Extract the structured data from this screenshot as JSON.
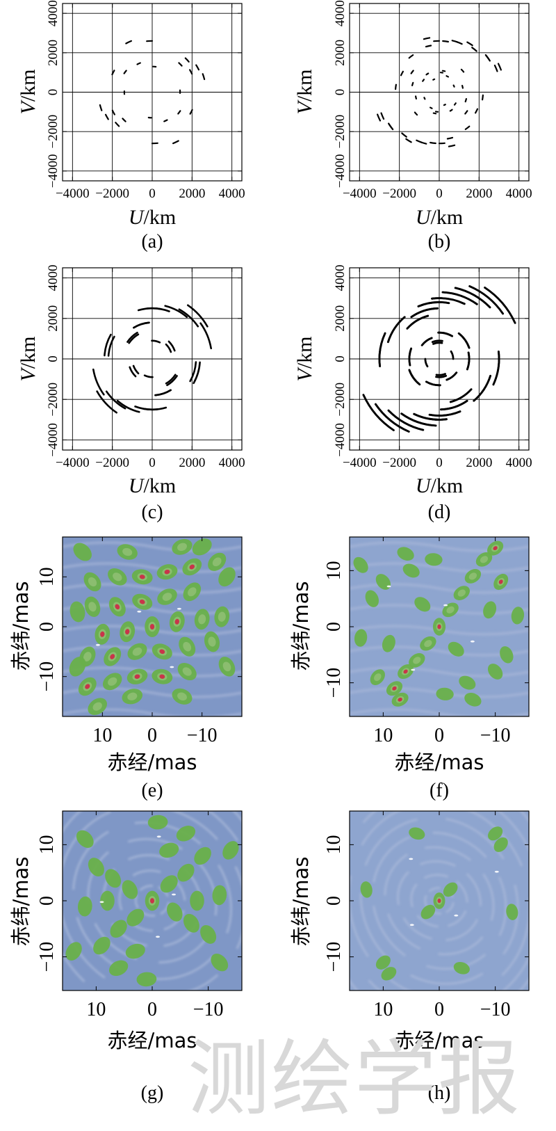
{
  "figure": {
    "uv_unit_label": "/km",
    "uv_xlabel": "U",
    "uv_ylabel": "V",
    "sky_xlabel": "赤经/mas",
    "sky_ylabel": "赤纬/mas",
    "watermark": "测绘学报",
    "colors": {
      "uv_track": "#000000",
      "grid": "#000000",
      "sky_bg": "#7f97c6",
      "sky_ring_light": "#aab8d8",
      "sky_peak_mid": "#69b04a",
      "sky_peak_core": "#c8354a",
      "sky_highlight": "#ffffff"
    }
  },
  "chart_data": [
    {
      "type": "scatter",
      "panel": "(a)",
      "title": "",
      "xlabel": "U/km",
      "ylabel": "V/km",
      "xlim": [
        -4500,
        4500
      ],
      "ylim": [
        -4500,
        4500
      ],
      "xticks": [
        -4000,
        -2000,
        0,
        2000,
        4000
      ],
      "yticks": [
        -4000,
        -2000,
        0,
        2000,
        4000
      ],
      "tick_labels_x": [
        "−4000",
        "−2000",
        "0",
        "2000",
        "4000"
      ],
      "tick_labels_y": [
        "−4000",
        "−2000",
        "0",
        "2000",
        "4000"
      ],
      "arc_span_deg": 6,
      "track_width": 2.2,
      "tracks": [
        [
          2700,
          14
        ],
        [
          2600,
          26
        ],
        [
          2400,
          40
        ],
        [
          2600,
          90
        ],
        [
          2800,
          112
        ],
        [
          2200,
          150
        ],
        [
          1400,
          178
        ],
        [
          2200,
          205
        ],
        [
          2000,
          222
        ],
        [
          1300,
          262
        ],
        [
          1600,
          292
        ],
        [
          1700,
          320
        ]
      ]
    },
    {
      "type": "scatter",
      "panel": "(b)",
      "title": "",
      "xlabel": "U/km",
      "ylabel": "V/km",
      "xlim": [
        -4500,
        4500
      ],
      "ylim": [
        -4500,
        4500
      ],
      "xticks": [
        -4000,
        -2000,
        0,
        2000,
        4000
      ],
      "yticks": [
        -4000,
        -2000,
        0,
        2000,
        4000
      ],
      "tick_labels_x": [
        "−4000",
        "−2000",
        "0",
        "2000",
        "4000"
      ],
      "tick_labels_y": [
        "−4000",
        "−2000",
        "0",
        "2000",
        "4000"
      ],
      "arc_span_deg": 6,
      "track_width": 2.2,
      "tracks": [
        [
          3300,
          20
        ],
        [
          3000,
          33
        ],
        [
          2900,
          55
        ],
        [
          2700,
          70
        ],
        [
          2600,
          90
        ],
        [
          2400,
          100
        ],
        [
          2300,
          125
        ],
        [
          2100,
          150
        ],
        [
          2200,
          170
        ],
        [
          3100,
          200
        ],
        [
          3000,
          212
        ],
        [
          2800,
          228
        ],
        [
          2700,
          245
        ],
        [
          2600,
          260
        ],
        [
          2800,
          280
        ],
        [
          1700,
          320
        ],
        [
          1400,
          340
        ],
        [
          1600,
          40
        ],
        [
          1100,
          75
        ],
        [
          1000,
          140
        ],
        [
          1200,
          190
        ],
        [
          900,
          240
        ],
        [
          1100,
          300
        ],
        [
          800,
          20
        ],
        [
          700,
          110
        ],
        [
          1000,
          260
        ]
      ]
    },
    {
      "type": "scatter",
      "panel": "(c)",
      "title": "",
      "xlabel": "U/km",
      "ylabel": "V/km",
      "xlim": [
        -4500,
        4500
      ],
      "ylim": [
        -4500,
        4500
      ],
      "xticks": [
        -4000,
        -2000,
        0,
        2000,
        4000
      ],
      "yticks": [
        -4000,
        -2000,
        0,
        2000,
        4000
      ],
      "tick_labels_x": [
        "−4000",
        "−2000",
        "0",
        "2000",
        "4000"
      ],
      "tick_labels_y": [
        "−4000",
        "−2000",
        "0",
        "2000",
        "4000"
      ],
      "arc_span_deg": 26,
      "track_width": 2.6,
      "tracks": [
        [
          3200,
          30
        ],
        [
          2700,
          50
        ],
        [
          2500,
          80
        ],
        [
          1800,
          95
        ],
        [
          1500,
          120
        ],
        [
          2400,
          150
        ],
        [
          3000,
          190
        ],
        [
          2800,
          215
        ],
        [
          2500,
          250
        ],
        [
          1800,
          275
        ],
        [
          1400,
          300
        ],
        [
          2200,
          330
        ],
        [
          1200,
          20
        ],
        [
          1000,
          200
        ],
        [
          900,
          245
        ]
      ]
    },
    {
      "type": "scatter",
      "panel": "(d)",
      "title": "",
      "xlabel": "U/km",
      "ylabel": "V/km",
      "xlim": [
        -4500,
        4500
      ],
      "ylim": [
        -4500,
        4500
      ],
      "xticks": [
        -4000,
        -2000,
        0,
        2000,
        4000
      ],
      "yticks": [
        -4000,
        -2000,
        0,
        2000,
        4000
      ],
      "tick_labels_x": [
        "−4000",
        "−2000",
        "0",
        "2000",
        "4000"
      ],
      "tick_labels_y": [
        "−4000",
        "−2000",
        "0",
        "2000",
        "4000"
      ],
      "arc_span_deg": 32,
      "track_width": 2.8,
      "tracks": [
        [
          4200,
          25
        ],
        [
          3900,
          35
        ],
        [
          3600,
          45
        ],
        [
          3300,
          55
        ],
        [
          3000,
          65
        ],
        [
          2800,
          80
        ],
        [
          2500,
          92
        ],
        [
          2200,
          105
        ],
        [
          2700,
          130
        ],
        [
          3000,
          155
        ],
        [
          4200,
          205
        ],
        [
          3900,
          215
        ],
        [
          3600,
          225
        ],
        [
          3300,
          235
        ],
        [
          3000,
          245
        ],
        [
          2800,
          260
        ],
        [
          2500,
          272
        ],
        [
          2200,
          285
        ],
        [
          2700,
          310
        ],
        [
          3000,
          335
        ],
        [
          1600,
          20
        ],
        [
          1300,
          60
        ],
        [
          1100,
          110
        ],
        [
          1500,
          160
        ],
        [
          1600,
          200
        ],
        [
          1300,
          240
        ],
        [
          1100,
          290
        ],
        [
          1500,
          340
        ],
        [
          800,
          80
        ],
        [
          700,
          180
        ],
        [
          900,
          260
        ]
      ]
    },
    {
      "type": "heatmap",
      "panel": "(e)",
      "title": "",
      "xlabel": "赤经/mas",
      "ylabel": "赤纬/mas",
      "xlim": [
        18,
        -18
      ],
      "ylim": [
        -18,
        18
      ],
      "xticks": [
        10,
        0,
        -10
      ],
      "yticks": [
        -10,
        0,
        10
      ],
      "tick_labels_x": [
        "10",
        "0",
        "−10"
      ],
      "tick_labels_y": [
        "−10",
        "0",
        "10"
      ],
      "blob_size": 2.0,
      "ring_period": 0,
      "ring_swirl": 0,
      "peaks": [
        [
          0,
          0,
          3
        ],
        [
          -5,
          1,
          3
        ],
        [
          5,
          -1,
          3
        ],
        [
          -10,
          1.5,
          2
        ],
        [
          10,
          -1.5,
          3
        ],
        [
          -14,
          2,
          2
        ],
        [
          -2,
          -5,
          3
        ],
        [
          3,
          -5,
          2
        ],
        [
          -7,
          -4,
          2
        ],
        [
          8,
          -6,
          3
        ],
        [
          -12,
          -3,
          2
        ],
        [
          13,
          -6,
          2
        ],
        [
          2,
          5,
          3
        ],
        [
          -3,
          6,
          2
        ],
        [
          7,
          4,
          3
        ],
        [
          -8,
          7,
          2
        ],
        [
          12,
          4,
          2
        ],
        [
          -2,
          -10,
          3
        ],
        [
          3,
          -10,
          3
        ],
        [
          -7,
          -9,
          2
        ],
        [
          8,
          -11,
          2
        ],
        [
          13,
          -12,
          3
        ],
        [
          2,
          10,
          3
        ],
        [
          -3,
          11,
          3
        ],
        [
          7,
          10,
          2
        ],
        [
          -8,
          12,
          3
        ],
        [
          12,
          9,
          2
        ],
        [
          -13,
          13,
          2
        ],
        [
          4,
          -14,
          2
        ],
        [
          -6,
          -14,
          2
        ],
        [
          15,
          -8,
          1
        ],
        [
          -15,
          -8,
          2
        ],
        [
          5,
          15,
          2
        ],
        [
          -6,
          16,
          2
        ],
        [
          14,
          15,
          1
        ],
        [
          -15,
          10,
          1
        ],
        [
          11,
          -16,
          2
        ],
        [
          -10,
          16,
          1
        ],
        [
          15,
          3,
          1
        ]
      ]
    },
    {
      "type": "heatmap",
      "panel": "(f)",
      "title": "",
      "xlabel": "赤经/mas",
      "ylabel": "赤纬/mas",
      "xlim": [
        16,
        -16
      ],
      "ylim": [
        -16,
        16
      ],
      "xticks": [
        10,
        0,
        -10
      ],
      "yticks": [
        -10,
        0,
        10
      ],
      "tick_labels_x": [
        "10",
        "0",
        "−10"
      ],
      "tick_labels_y": [
        "−10",
        "0",
        "10"
      ],
      "blob_size": 1.5,
      "ring_period": 0,
      "ring_swirl": 0,
      "peaks": [
        [
          0,
          0,
          3
        ],
        [
          -2,
          3,
          2
        ],
        [
          2,
          -3,
          2
        ],
        [
          -4,
          6,
          2
        ],
        [
          4,
          -6,
          2
        ],
        [
          -6,
          9,
          2
        ],
        [
          -8,
          12,
          2
        ],
        [
          -10,
          14,
          3
        ],
        [
          6,
          -8,
          3
        ],
        [
          8,
          -11,
          3
        ],
        [
          -11,
          8,
          3
        ],
        [
          7,
          -13,
          3
        ],
        [
          11,
          -9,
          2
        ],
        [
          -3,
          -4,
          1
        ],
        [
          3,
          4,
          1
        ],
        [
          -9,
          3,
          1
        ],
        [
          9,
          -3,
          1
        ],
        [
          -5,
          -10,
          1
        ],
        [
          5,
          10,
          1
        ],
        [
          12,
          5,
          1
        ],
        [
          -12,
          -5,
          1
        ],
        [
          1,
          12,
          1
        ],
        [
          -1,
          -12,
          1
        ],
        [
          14,
          -2,
          1
        ],
        [
          -14,
          2,
          1
        ],
        [
          10,
          8,
          1
        ],
        [
          -10,
          -8,
          1
        ],
        [
          6,
          13,
          1
        ],
        [
          -6,
          -13,
          1
        ],
        [
          14,
          11,
          1
        ]
      ]
    },
    {
      "type": "heatmap",
      "panel": "(g)",
      "title": "",
      "xlabel": "赤经/mas",
      "ylabel": "赤纬/mas",
      "xlim": [
        16,
        -16
      ],
      "ylim": [
        -16,
        16
      ],
      "xticks": [
        10,
        0,
        -10
      ],
      "yticks": [
        -10,
        0,
        10
      ],
      "tick_labels_x": [
        "10",
        "0",
        "−10"
      ],
      "tick_labels_y": [
        "−10",
        "0",
        "10"
      ],
      "blob_size": 1.7,
      "ring_period": 2.8,
      "ring_swirl": 0.5,
      "peaks": [
        [
          0,
          0,
          3
        ],
        [
          -3,
          3,
          1
        ],
        [
          3,
          -3,
          1
        ],
        [
          -4,
          -2,
          1
        ],
        [
          4,
          2,
          1
        ],
        [
          -6,
          5,
          1
        ],
        [
          6,
          -5,
          1
        ],
        [
          -7,
          -4,
          1
        ],
        [
          7,
          4,
          1
        ],
        [
          -9,
          8,
          1
        ],
        [
          9,
          -8,
          1
        ],
        [
          -10,
          -6,
          1
        ],
        [
          10,
          6,
          1
        ],
        [
          -3,
          9,
          1
        ],
        [
          3,
          -9,
          1
        ],
        [
          -12,
          1,
          1
        ],
        [
          12,
          -1,
          1
        ],
        [
          -6,
          12,
          1
        ],
        [
          6,
          -12,
          1
        ],
        [
          -14,
          9,
          1
        ],
        [
          14,
          -9,
          1
        ],
        [
          -1,
          14,
          1
        ],
        [
          1,
          -14,
          1
        ],
        [
          -12,
          -11,
          1
        ],
        [
          12,
          11,
          1
        ],
        [
          8,
          0,
          1
        ],
        [
          -8,
          0,
          1
        ]
      ]
    },
    {
      "type": "heatmap",
      "panel": "(h)",
      "title": "",
      "xlabel": "赤经/mas",
      "ylabel": "赤纬/mas",
      "xlim": [
        16,
        -16
      ],
      "ylim": [
        -16,
        16
      ],
      "xticks": [
        10,
        0,
        -10
      ],
      "yticks": [
        -10,
        0,
        10
      ],
      "tick_labels_x": [
        "10",
        "0",
        "−10"
      ],
      "tick_labels_y": [
        "−10",
        "0",
        "10"
      ],
      "blob_size": 1.4,
      "ring_period": 2.4,
      "ring_swirl": 0.6,
      "peaks": [
        [
          0,
          0,
          3
        ],
        [
          -2,
          2,
          1
        ],
        [
          2,
          -2,
          1
        ],
        [
          -10,
          12,
          1
        ],
        [
          -11,
          10,
          1
        ],
        [
          10,
          -11,
          1
        ],
        [
          9,
          -13,
          1
        ],
        [
          -13,
          -2,
          1
        ],
        [
          13,
          2,
          1
        ],
        [
          -4,
          -12,
          1
        ],
        [
          4,
          12,
          1
        ]
      ]
    }
  ],
  "captions": [
    "(a)",
    "(b)",
    "(c)",
    "(d)",
    "(e)",
    "(f)",
    "(g)",
    "(h)"
  ]
}
